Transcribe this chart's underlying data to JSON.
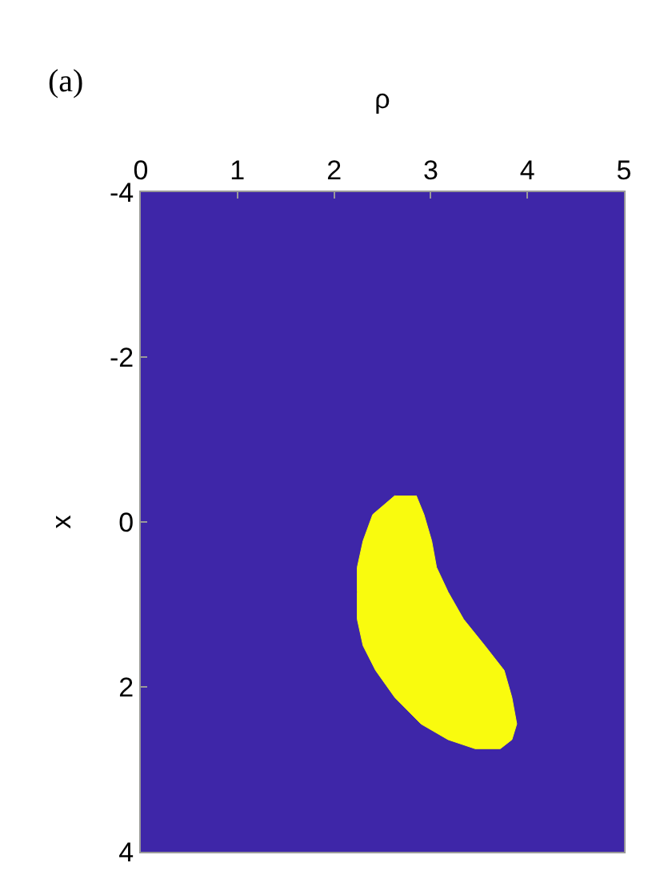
{
  "chart_data": {
    "type": "area",
    "orientation": "horizontal",
    "xlabel": "ρ",
    "ylabel": "x",
    "annotations": [
      "(a)"
    ],
    "series": [
      {
        "color": "#f9fb0e",
        "x": [
          -0.32,
          -0.09,
          0.23,
          0.55,
          0.85,
          1.18,
          1.5,
          1.8,
          2.13,
          2.45,
          2.64,
          2.75,
          2.75,
          2.64,
          2.45,
          2.13,
          1.8,
          1.5,
          1.18,
          0.85,
          0.55,
          0.23,
          -0.09,
          -0.32
        ],
        "values": [
          2.85,
          2.93,
          3.01,
          3.06,
          3.18,
          3.34,
          3.56,
          3.76,
          3.84,
          3.89,
          3.84,
          3.72,
          3.46,
          3.18,
          2.9,
          2.63,
          2.43,
          2.3,
          2.24,
          2.24,
          2.24,
          2.3,
          2.4,
          2.63
        ]
      }
    ],
    "bands": [
      {
        "axis": "x",
        "from": 0,
        "to": 5,
        "color": "#3e26a8"
      }
    ],
    "xlim": [
      0,
      5
    ],
    "xticks": [
      0,
      1,
      2,
      3,
      4,
      5
    ],
    "ylim": [
      4,
      -4
    ],
    "yticks": [
      -4,
      -2,
      0,
      2,
      4
    ],
    "grid": false
  }
}
